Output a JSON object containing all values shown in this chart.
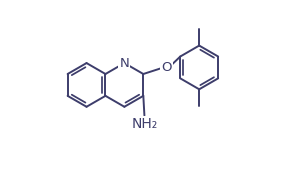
{
  "background_color": "#ffffff",
  "line_color": "#3d3d6b",
  "line_width": 1.4,
  "font_size": 9,
  "figsize": [
    2.84,
    1.74
  ],
  "dpi": 100,
  "xlim": [
    0,
    10
  ],
  "ylim": [
    0,
    6.13
  ]
}
